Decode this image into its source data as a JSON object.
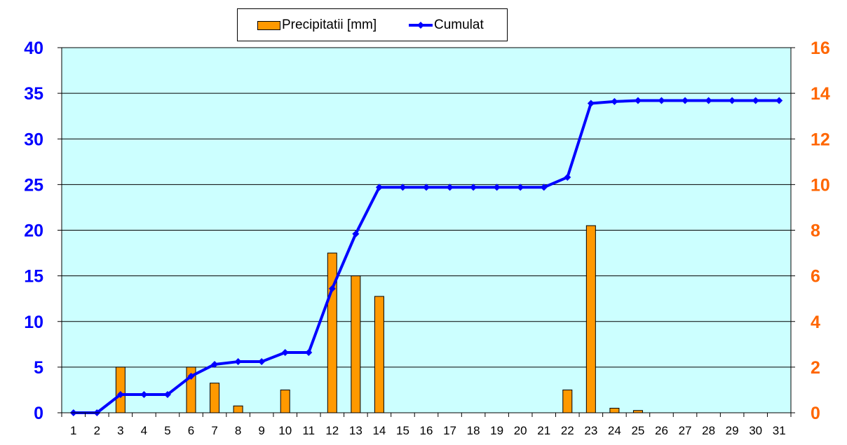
{
  "colors": {
    "plot_bg": "#CCFFFF",
    "bar": "#FF9900",
    "line": "#0000FF",
    "left_axis": "#0000FF",
    "right_axis": "#FF6600",
    "grid": "#000000"
  },
  "legend": {
    "precip_label": "Precipitatii [mm]",
    "cumul_label": "Cumulat"
  },
  "chart_data": {
    "type": "bar",
    "categories": [
      "1",
      "2",
      "3",
      "4",
      "5",
      "6",
      "7",
      "8",
      "9",
      "10",
      "11",
      "12",
      "13",
      "14",
      "15",
      "16",
      "17",
      "18",
      "19",
      "20",
      "21",
      "22",
      "23",
      "24",
      "25",
      "26",
      "27",
      "28",
      "29",
      "30",
      "31"
    ],
    "series": [
      {
        "name": "Precipitatii [mm]",
        "type": "bar",
        "axis": "right",
        "values": [
          0,
          0,
          2.0,
          0,
          0,
          2.0,
          1.3,
          0.3,
          0,
          1.0,
          0,
          7.0,
          6.0,
          5.1,
          0,
          0,
          0,
          0,
          0,
          0,
          0,
          1.0,
          8.2,
          0.2,
          0.1,
          0,
          0,
          0,
          0,
          0,
          0
        ]
      },
      {
        "name": "Cumulat",
        "type": "line",
        "axis": "left",
        "values": [
          0,
          0,
          2.0,
          2.0,
          2.0,
          4.0,
          5.3,
          5.6,
          5.6,
          6.6,
          6.6,
          13.6,
          19.6,
          24.7,
          24.7,
          24.7,
          24.7,
          24.7,
          24.7,
          24.7,
          24.7,
          25.8,
          33.9,
          34.1,
          34.2,
          34.2,
          34.2,
          34.2,
          34.2,
          34.2,
          34.2
        ]
      }
    ],
    "y_left": {
      "min": 0,
      "max": 40,
      "ticks": [
        "0",
        "5",
        "10",
        "15",
        "20",
        "25",
        "30",
        "35",
        "40"
      ]
    },
    "y_right": {
      "min": 0,
      "max": 16,
      "ticks": [
        "0",
        "2",
        "4",
        "6",
        "8",
        "10",
        "12",
        "14",
        "16"
      ]
    },
    "grid": true,
    "legend_position": "top"
  }
}
